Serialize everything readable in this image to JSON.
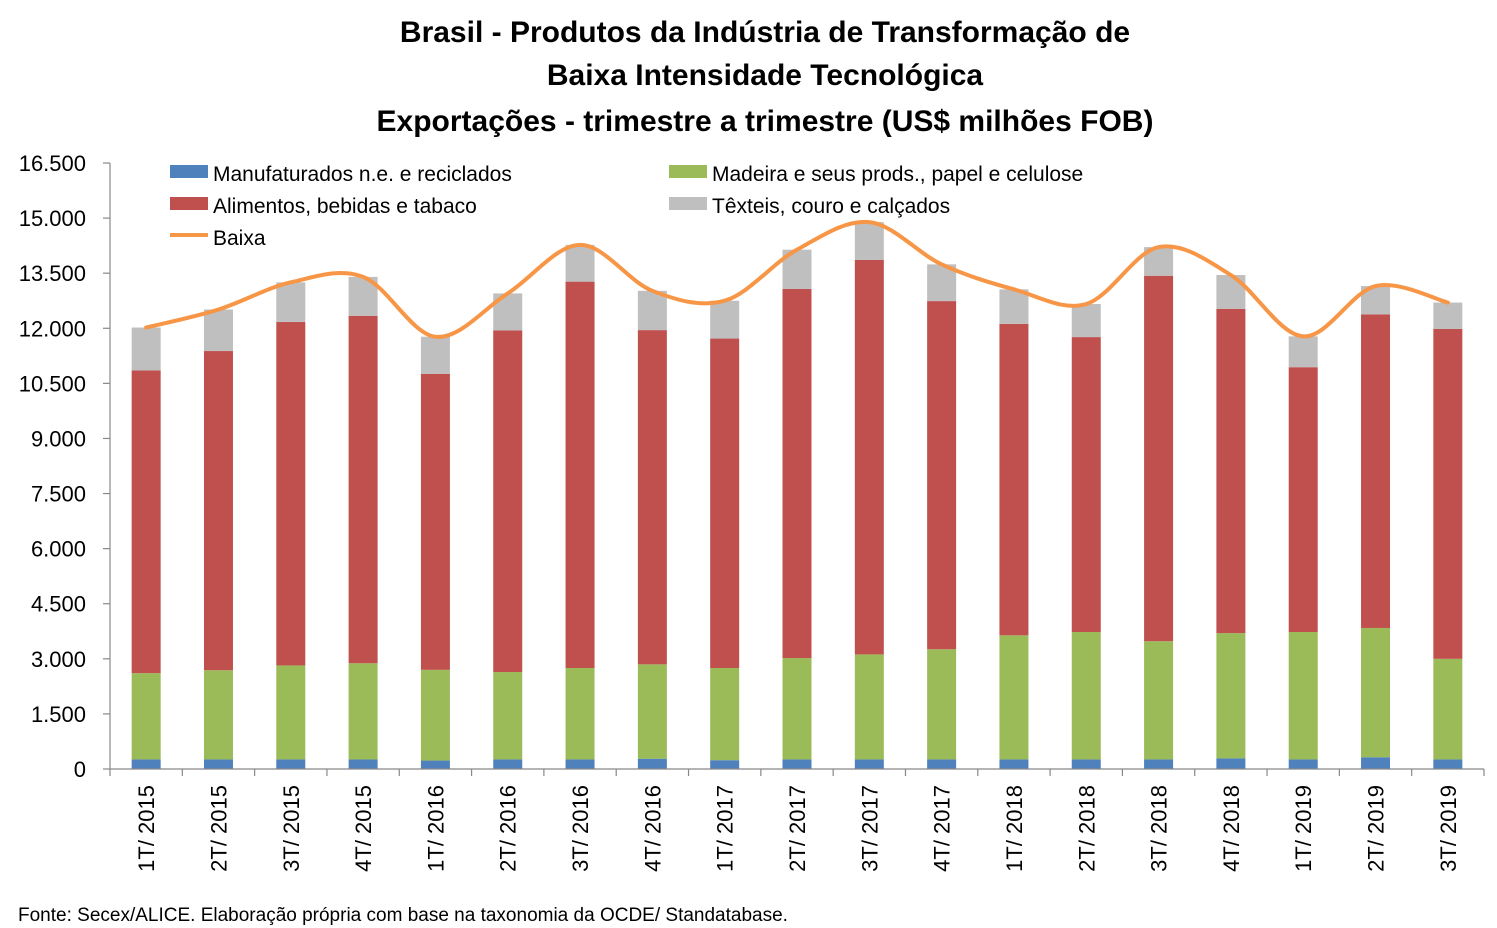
{
  "chart_data": {
    "type": "bar",
    "stacked": true,
    "title": [
      "Brasil - Produtos da Indústria de Transformação de",
      "Baixa Intensidade Tecnológica",
      "Exportações - trimestre a trimestre (US$ milhões FOB)"
    ],
    "source": "Fonte: Secex/ALICE. Elaboração própria com base na taxonomia da OCDE/ Standatabase.",
    "ylim": [
      0,
      16500
    ],
    "yticks": [
      "0",
      "1.500",
      "3.000",
      "4.500",
      "6.000",
      "7.500",
      "9.000",
      "10.500",
      "12.000",
      "13.500",
      "15.000",
      "16.500"
    ],
    "ytick_values": [
      0,
      1500,
      3000,
      4500,
      6000,
      7500,
      9000,
      10500,
      12000,
      13500,
      15000,
      16500
    ],
    "legend_position": "top",
    "categories": [
      "1T/ 2015",
      "2T/ 2015",
      "3T/ 2015",
      "4T/ 2015",
      "1T/ 2016",
      "2T/ 2016",
      "3T/ 2016",
      "4T/ 2016",
      "1T/ 2017",
      "2T/ 2017",
      "3T/ 2017",
      "4T/ 2017",
      "1T/ 2018",
      "2T/ 2018",
      "3T/ 2018",
      "4T/ 2018",
      "1T/ 2019",
      "2T/ 2019",
      "3T/ 2019"
    ],
    "series": [
      {
        "name": "Manufaturados n.e. e reciclados",
        "color": "#4F81BD",
        "values": [
          260,
          260,
          260,
          260,
          230,
          260,
          260,
          280,
          240,
          260,
          260,
          260,
          260,
          260,
          260,
          290,
          260,
          320,
          260
        ]
      },
      {
        "name": "Madeira e seus prods., papel e celulose",
        "color": "#9BBB59",
        "values": [
          2350,
          2430,
          2560,
          2620,
          2470,
          2380,
          2490,
          2570,
          2510,
          2760,
          2860,
          3000,
          3380,
          3470,
          3220,
          3410,
          3470,
          3520,
          2740
        ]
      },
      {
        "name": "Alimentos, bebidas e tabaco",
        "color": "#C0504D",
        "values": [
          8240,
          8690,
          9350,
          9460,
          8060,
          9300,
          10520,
          9100,
          8970,
          10050,
          10740,
          9480,
          8480,
          8030,
          9950,
          8830,
          7210,
          8540,
          8980
        ]
      },
      {
        "name": "Têxteis, couro e calçados",
        "color": "#BFBFBF",
        "values": [
          1170,
          1130,
          1080,
          1060,
          1010,
          1010,
          1000,
          1070,
          1030,
          1070,
          1030,
          1000,
          940,
          900,
          780,
          920,
          840,
          770,
          720
        ]
      }
    ],
    "line": {
      "name": "Baixa",
      "color": "#F79646",
      "values": [
        12020,
        12510,
        13250,
        13400,
        11770,
        12950,
        14270,
        13020,
        12750,
        14140,
        14890,
        13740,
        13060,
        12660,
        14210,
        13450,
        11780,
        13150,
        12700
      ]
    }
  }
}
